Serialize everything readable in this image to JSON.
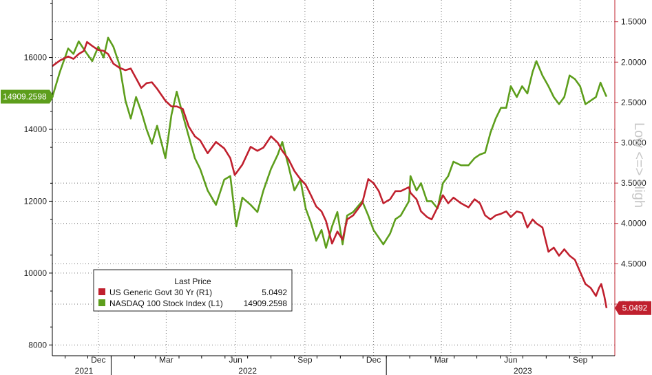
{
  "chart_data": {
    "type": "line",
    "legend": {
      "title": "Last Price",
      "entries": [
        {
          "name": "US Generic Govt 30 Yr  (R1)",
          "value": "5.0492",
          "color": "#c0202e"
        },
        {
          "name": "NASDAQ 100 Stock Index  (L1)",
          "value": "14909.2598",
          "color": "#5d9e1c"
        }
      ],
      "placement": "bottom-left"
    },
    "right_axis_label": "Low <=> High",
    "left_axis": {
      "ylim": [
        7700,
        17600
      ],
      "ticks": [
        "8000",
        "10000",
        "12000",
        "14000",
        "16000"
      ],
      "tick_values": [
        8000,
        10000,
        12000,
        14000,
        16000
      ]
    },
    "right_axis": {
      "ylim": [
        1.23,
        5.64
      ],
      "inverted": true,
      "ticks": [
        "1.5000",
        "2.0000",
        "2.5000",
        "3.0000",
        "3.5000",
        "4.0000",
        "4.5000",
        "5.0000"
      ],
      "tick_values": [
        1.5,
        2.0,
        2.5,
        3.0,
        3.5,
        4.0,
        4.5,
        5.0
      ]
    },
    "x_axis": {
      "month_ticks": [
        "Dec",
        "Mar",
        "Jun",
        "Sep",
        "Dec",
        "Mar",
        "Jun",
        "Sep"
      ],
      "month_tick_dates": [
        "2021-12-15",
        "2022-03-15",
        "2022-06-15",
        "2022-09-15",
        "2022-12-15",
        "2023-03-15",
        "2023-06-15",
        "2023-09-15"
      ],
      "years": [
        "2021",
        "2022",
        "2023"
      ],
      "year_dates": [
        "2021-11-26",
        "2022-07-01",
        "2023-07-01"
      ],
      "year_separators": [
        "2022-01-01",
        "2023-01-01"
      ],
      "xlim": [
        "2021-10-15",
        "2023-10-31"
      ]
    },
    "series": [
      {
        "name": "NASDAQ 100 Stock Index  (L1)",
        "axis": "left",
        "color": "#5d9e1c",
        "last_value": "14909.2598",
        "points": [
          [
            "2021-10-15",
            14900
          ],
          [
            "2021-10-25",
            15600
          ],
          [
            "2021-11-05",
            16250
          ],
          [
            "2021-11-12",
            16100
          ],
          [
            "2021-11-19",
            16450
          ],
          [
            "2021-11-30",
            16100
          ],
          [
            "2021-12-07",
            15900
          ],
          [
            "2021-12-15",
            16300
          ],
          [
            "2021-12-22",
            16000
          ],
          [
            "2021-12-28",
            16550
          ],
          [
            "2022-01-04",
            16300
          ],
          [
            "2022-01-12",
            15800
          ],
          [
            "2022-01-20",
            14800
          ],
          [
            "2022-01-27",
            14300
          ],
          [
            "2022-02-03",
            14900
          ],
          [
            "2022-02-10",
            14500
          ],
          [
            "2022-02-17",
            14000
          ],
          [
            "2022-02-24",
            13600
          ],
          [
            "2022-03-03",
            14100
          ],
          [
            "2022-03-14",
            13200
          ],
          [
            "2022-03-22",
            14400
          ],
          [
            "2022-03-29",
            15050
          ],
          [
            "2022-04-06",
            14400
          ],
          [
            "2022-04-14",
            13800
          ],
          [
            "2022-04-22",
            13200
          ],
          [
            "2022-04-29",
            12900
          ],
          [
            "2022-05-09",
            12300
          ],
          [
            "2022-05-20",
            11900
          ],
          [
            "2022-05-31",
            12600
          ],
          [
            "2022-06-08",
            12700
          ],
          [
            "2022-06-16",
            11300
          ],
          [
            "2022-06-24",
            12100
          ],
          [
            "2022-07-05",
            11900
          ],
          [
            "2022-07-14",
            11700
          ],
          [
            "2022-07-22",
            12300
          ],
          [
            "2022-08-01",
            12900
          ],
          [
            "2022-08-10",
            13300
          ],
          [
            "2022-08-16",
            13650
          ],
          [
            "2022-08-24",
            13000
          ],
          [
            "2022-09-01",
            12300
          ],
          [
            "2022-09-09",
            12600
          ],
          [
            "2022-09-16",
            11800
          ],
          [
            "2022-09-23",
            11400
          ],
          [
            "2022-09-30",
            10900
          ],
          [
            "2022-10-07",
            11200
          ],
          [
            "2022-10-13",
            10700
          ],
          [
            "2022-10-21",
            11300
          ],
          [
            "2022-10-28",
            11700
          ],
          [
            "2022-11-04",
            10800
          ],
          [
            "2022-11-10",
            11600
          ],
          [
            "2022-11-18",
            11700
          ],
          [
            "2022-11-30",
            12000
          ],
          [
            "2022-12-08",
            11600
          ],
          [
            "2022-12-15",
            11200
          ],
          [
            "2022-12-28",
            10800
          ],
          [
            "2023-01-06",
            11100
          ],
          [
            "2023-01-13",
            11500
          ],
          [
            "2023-01-20",
            11600
          ],
          [
            "2023-01-31",
            12000
          ],
          [
            "2023-02-02",
            12700
          ],
          [
            "2023-02-10",
            12300
          ],
          [
            "2023-02-16",
            12500
          ],
          [
            "2023-02-24",
            12000
          ],
          [
            "2023-03-02",
            12000
          ],
          [
            "2023-03-10",
            11800
          ],
          [
            "2023-03-17",
            12500
          ],
          [
            "2023-03-24",
            12700
          ],
          [
            "2023-03-31",
            13100
          ],
          [
            "2023-04-10",
            13000
          ],
          [
            "2023-04-20",
            13000
          ],
          [
            "2023-04-28",
            13200
          ],
          [
            "2023-05-05",
            13300
          ],
          [
            "2023-05-12",
            13350
          ],
          [
            "2023-05-19",
            13900
          ],
          [
            "2023-05-26",
            14300
          ],
          [
            "2023-06-02",
            14600
          ],
          [
            "2023-06-09",
            14600
          ],
          [
            "2023-06-15",
            15200
          ],
          [
            "2023-06-23",
            14900
          ],
          [
            "2023-06-30",
            15200
          ],
          [
            "2023-07-07",
            15000
          ],
          [
            "2023-07-14",
            15600
          ],
          [
            "2023-07-19",
            15900
          ],
          [
            "2023-07-27",
            15500
          ],
          [
            "2023-08-04",
            15200
          ],
          [
            "2023-08-11",
            14900
          ],
          [
            "2023-08-18",
            14700
          ],
          [
            "2023-08-25",
            14900
          ],
          [
            "2023-09-01",
            15500
          ],
          [
            "2023-09-08",
            15400
          ],
          [
            "2023-09-15",
            15200
          ],
          [
            "2023-09-22",
            14700
          ],
          [
            "2023-09-29",
            14800
          ],
          [
            "2023-10-06",
            14900
          ],
          [
            "2023-10-12",
            15300
          ],
          [
            "2023-10-18",
            15000
          ],
          [
            "2023-10-20",
            14909.2598
          ]
        ]
      },
      {
        "name": "US Generic Govt 30 Yr  (R1)",
        "axis": "right",
        "color": "#c0202e",
        "last_value": "5.0492",
        "points": [
          [
            "2021-10-15",
            2.05
          ],
          [
            "2021-10-25",
            1.98
          ],
          [
            "2021-11-05",
            1.93
          ],
          [
            "2021-11-12",
            1.96
          ],
          [
            "2021-11-19",
            1.9
          ],
          [
            "2021-11-26",
            1.86
          ],
          [
            "2021-11-30",
            1.75
          ],
          [
            "2021-12-07",
            1.8
          ],
          [
            "2021-12-15",
            1.85
          ],
          [
            "2021-12-22",
            1.86
          ],
          [
            "2021-12-28",
            1.9
          ],
          [
            "2022-01-04",
            2.02
          ],
          [
            "2022-01-12",
            2.07
          ],
          [
            "2022-01-20",
            2.1
          ],
          [
            "2022-01-27",
            2.08
          ],
          [
            "2022-02-03",
            2.2
          ],
          [
            "2022-02-10",
            2.32
          ],
          [
            "2022-02-17",
            2.26
          ],
          [
            "2022-02-24",
            2.25
          ],
          [
            "2022-03-03",
            2.33
          ],
          [
            "2022-03-14",
            2.48
          ],
          [
            "2022-03-22",
            2.55
          ],
          [
            "2022-03-29",
            2.55
          ],
          [
            "2022-04-06",
            2.58
          ],
          [
            "2022-04-14",
            2.8
          ],
          [
            "2022-04-22",
            2.92
          ],
          [
            "2022-04-29",
            2.97
          ],
          [
            "2022-05-09",
            3.13
          ],
          [
            "2022-05-20",
            2.99
          ],
          [
            "2022-05-31",
            3.07
          ],
          [
            "2022-06-08",
            3.19
          ],
          [
            "2022-06-14",
            3.4
          ],
          [
            "2022-06-24",
            3.27
          ],
          [
            "2022-07-05",
            3.05
          ],
          [
            "2022-07-14",
            3.1
          ],
          [
            "2022-07-22",
            3.06
          ],
          [
            "2022-08-01",
            2.92
          ],
          [
            "2022-08-10",
            3.0
          ],
          [
            "2022-08-16",
            3.1
          ],
          [
            "2022-08-24",
            3.2
          ],
          [
            "2022-09-01",
            3.35
          ],
          [
            "2022-09-09",
            3.45
          ],
          [
            "2022-09-16",
            3.52
          ],
          [
            "2022-09-23",
            3.65
          ],
          [
            "2022-09-30",
            3.79
          ],
          [
            "2022-10-07",
            3.85
          ],
          [
            "2022-10-13",
            3.97
          ],
          [
            "2022-10-21",
            4.25
          ],
          [
            "2022-10-28",
            4.1
          ],
          [
            "2022-11-04",
            4.2
          ],
          [
            "2022-11-10",
            3.95
          ],
          [
            "2022-11-18",
            3.9
          ],
          [
            "2022-11-30",
            3.75
          ],
          [
            "2022-12-08",
            3.45
          ],
          [
            "2022-12-15",
            3.5
          ],
          [
            "2022-12-22",
            3.6
          ],
          [
            "2022-12-28",
            3.75
          ],
          [
            "2023-01-06",
            3.7
          ],
          [
            "2023-01-13",
            3.6
          ],
          [
            "2023-01-20",
            3.6
          ],
          [
            "2023-01-31",
            3.55
          ],
          [
            "2023-02-02",
            3.62
          ],
          [
            "2023-02-10",
            3.7
          ],
          [
            "2023-02-16",
            3.85
          ],
          [
            "2023-02-24",
            3.92
          ],
          [
            "2023-03-02",
            3.95
          ],
          [
            "2023-03-10",
            3.8
          ],
          [
            "2023-03-17",
            3.65
          ],
          [
            "2023-03-24",
            3.75
          ],
          [
            "2023-03-31",
            3.68
          ],
          [
            "2023-04-10",
            3.75
          ],
          [
            "2023-04-20",
            3.8
          ],
          [
            "2023-04-28",
            3.7
          ],
          [
            "2023-05-05",
            3.75
          ],
          [
            "2023-05-12",
            3.9
          ],
          [
            "2023-05-19",
            3.95
          ],
          [
            "2023-05-26",
            3.9
          ],
          [
            "2023-06-02",
            3.88
          ],
          [
            "2023-06-09",
            3.85
          ],
          [
            "2023-06-15",
            3.92
          ],
          [
            "2023-06-23",
            3.85
          ],
          [
            "2023-06-30",
            3.87
          ],
          [
            "2023-07-07",
            4.05
          ],
          [
            "2023-07-14",
            3.95
          ],
          [
            "2023-07-19",
            4.0
          ],
          [
            "2023-07-27",
            4.05
          ],
          [
            "2023-08-04",
            4.35
          ],
          [
            "2023-08-11",
            4.3
          ],
          [
            "2023-08-18",
            4.4
          ],
          [
            "2023-08-25",
            4.32
          ],
          [
            "2023-09-01",
            4.4
          ],
          [
            "2023-09-08",
            4.45
          ],
          [
            "2023-09-15",
            4.6
          ],
          [
            "2023-09-22",
            4.75
          ],
          [
            "2023-09-29",
            4.8
          ],
          [
            "2023-10-06",
            4.9
          ],
          [
            "2023-10-10",
            4.8
          ],
          [
            "2023-10-13",
            4.75
          ],
          [
            "2023-10-17",
            4.9
          ],
          [
            "2023-10-20",
            5.0492
          ]
        ]
      }
    ]
  }
}
